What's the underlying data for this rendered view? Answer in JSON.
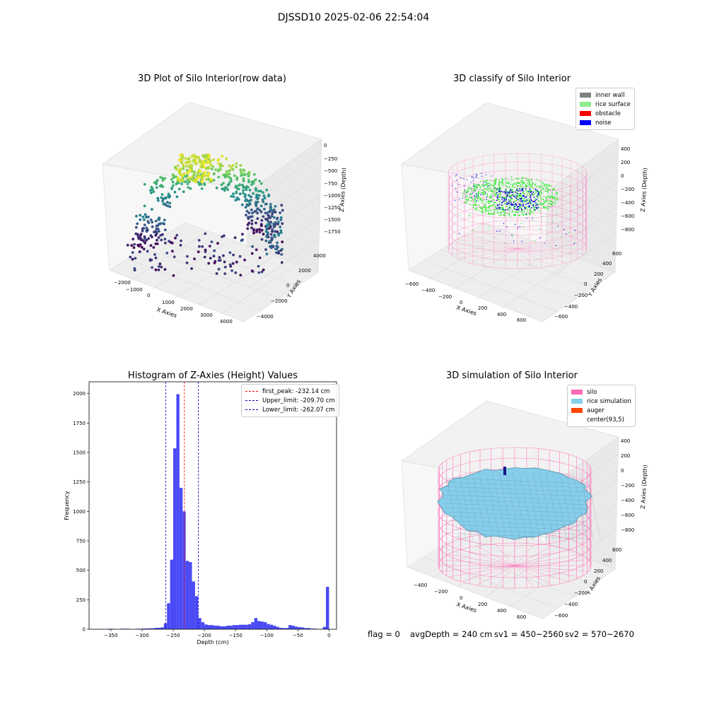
{
  "figure": {
    "suptitle": "DJSSD10 2025-02-06 22:54:04",
    "status": {
      "flag": "flag = 0",
      "avg_depth": "avgDepth = 240 cm",
      "sv1": "sv1 = 450~2560",
      "sv2": "sv2 = 570~2670"
    }
  },
  "colors": {
    "inner_wall": "#808080",
    "rice_surface": "#90ee90",
    "obstacle": "#ff0000",
    "noise": "#0000ff",
    "silo": "#ff69b4",
    "rice_simulation": "#87ceeb",
    "auger": "#ff4500",
    "hist_bar": "#4a4af5",
    "first_peak_line": "#ff0000",
    "limit_lines": "#0000cc"
  },
  "chart_data": [
    {
      "type": "scatter",
      "title": "3D Plot of Silo Interior(row data)",
      "xlabel": "X Axies",
      "ylabel": "Y Axies",
      "zlabel": "Z Axies (Depth)",
      "x_ticks": [
        "−2000",
        "−1000",
        "0",
        "1000",
        "2000",
        "3000",
        "4000"
      ],
      "y_ticks": [
        "−4000",
        "−2000",
        "0",
        "2000",
        "4000"
      ],
      "z_ticks": [
        "0",
        "−250",
        "−500",
        "−750",
        "−1000",
        "−1250",
        "−1500",
        "−1750"
      ],
      "colormap": "viridis",
      "grid": true
    },
    {
      "type": "scatter",
      "title": "3D classify of Silo Interior",
      "xlabel": "X Axies",
      "ylabel": "Y Axies",
      "zlabel": "Z Axies (Depth)",
      "x_ticks": [
        "−600",
        "−400",
        "−200",
        "0",
        "200",
        "400",
        "600"
      ],
      "y_ticks": [
        "−600",
        "−400",
        "−200",
        "0",
        "200",
        "400",
        "600"
      ],
      "z_ticks": [
        "400",
        "200",
        "0",
        "−200",
        "−400",
        "−600",
        "−800"
      ],
      "legend": [
        "inner wall",
        "rice surface",
        "obstacle",
        "noise"
      ],
      "legend_position": "top-right",
      "grid": true
    },
    {
      "type": "bar",
      "title": "Histogram of Z-Axies (Height) Values",
      "xlabel": "Depth (cm)",
      "ylabel": "Frequency",
      "xlim": [
        -385,
        12
      ],
      "ylim": [
        0,
        2100
      ],
      "x_ticks": [
        -350,
        -300,
        -250,
        -200,
        -150,
        -100,
        -50,
        0
      ],
      "x_tick_labels": [
        "−350",
        "−300",
        "−250",
        "−200",
        "−150",
        "−100",
        "−50",
        "0"
      ],
      "y_ticks": [
        0,
        250,
        500,
        750,
        1000,
        1250,
        1500,
        1750,
        2000
      ],
      "y_tick_labels": [
        "0",
        "250",
        "500",
        "750",
        "1000",
        "1250",
        "1500",
        "1750",
        "2000"
      ],
      "bins": [
        {
          "x0": -375,
          "x1": -370,
          "v": 3
        },
        {
          "x0": -355,
          "x1": -345,
          "v": 4
        },
        {
          "x0": -335,
          "x1": -320,
          "v": 4
        },
        {
          "x0": -310,
          "x1": -300,
          "v": 4
        },
        {
          "x0": -300,
          "x1": -290,
          "v": 6
        },
        {
          "x0": -290,
          "x1": -280,
          "v": 8
        },
        {
          "x0": -280,
          "x1": -270,
          "v": 12
        },
        {
          "x0": -270,
          "x1": -265,
          "v": 16
        },
        {
          "x0": -265,
          "x1": -260,
          "v": 50
        },
        {
          "x0": -260,
          "x1": -255,
          "v": 220
        },
        {
          "x0": -255,
          "x1": -250,
          "v": 590
        },
        {
          "x0": -250,
          "x1": -245,
          "v": 1535
        },
        {
          "x0": -245,
          "x1": -240,
          "v": 1995
        },
        {
          "x0": -240,
          "x1": -235,
          "v": 1200
        },
        {
          "x0": -235,
          "x1": -230,
          "v": 1000
        },
        {
          "x0": -230,
          "x1": -225,
          "v": 580
        },
        {
          "x0": -225,
          "x1": -220,
          "v": 570
        },
        {
          "x0": -220,
          "x1": -215,
          "v": 405
        },
        {
          "x0": -215,
          "x1": -210,
          "v": 280
        },
        {
          "x0": -210,
          "x1": -205,
          "v": 95
        },
        {
          "x0": -205,
          "x1": -200,
          "v": 60
        },
        {
          "x0": -200,
          "x1": -195,
          "v": 40
        },
        {
          "x0": -195,
          "x1": -185,
          "v": 35
        },
        {
          "x0": -185,
          "x1": -175,
          "v": 30
        },
        {
          "x0": -175,
          "x1": -165,
          "v": 25
        },
        {
          "x0": -165,
          "x1": -155,
          "v": 30
        },
        {
          "x0": -155,
          "x1": -145,
          "v": 35
        },
        {
          "x0": -145,
          "x1": -130,
          "v": 38
        },
        {
          "x0": -130,
          "x1": -125,
          "v": 42
        },
        {
          "x0": -125,
          "x1": -120,
          "v": 60
        },
        {
          "x0": -120,
          "x1": -115,
          "v": 95
        },
        {
          "x0": -115,
          "x1": -110,
          "v": 70
        },
        {
          "x0": -110,
          "x1": -105,
          "v": 65
        },
        {
          "x0": -105,
          "x1": -100,
          "v": 60
        },
        {
          "x0": -100,
          "x1": -95,
          "v": 45
        },
        {
          "x0": -95,
          "x1": -90,
          "v": 38
        },
        {
          "x0": -90,
          "x1": -85,
          "v": 30
        },
        {
          "x0": -85,
          "x1": -80,
          "v": 20
        },
        {
          "x0": -80,
          "x1": -75,
          "v": 12
        },
        {
          "x0": -75,
          "x1": -65,
          "v": 10
        },
        {
          "x0": -65,
          "x1": -60,
          "v": 35
        },
        {
          "x0": -60,
          "x1": -55,
          "v": 30
        },
        {
          "x0": -55,
          "x1": -50,
          "v": 22
        },
        {
          "x0": -50,
          "x1": -45,
          "v": 18
        },
        {
          "x0": -45,
          "x1": -40,
          "v": 15
        },
        {
          "x0": -40,
          "x1": -30,
          "v": 10
        },
        {
          "x0": -30,
          "x1": -20,
          "v": 5
        },
        {
          "x0": -10,
          "x1": -5,
          "v": 20
        },
        {
          "x0": -5,
          "x1": 0,
          "v": 360
        }
      ],
      "vlines": [
        {
          "label": "first_peak: -232.14 cm",
          "x": -232.14,
          "color": "#ff0000"
        },
        {
          "label": "Upper_limit: -209.70 cm",
          "x": -209.7,
          "color": "#0000cc"
        },
        {
          "label": "Lower_limit: -262.07 cm",
          "x": -262.07,
          "color": "#0000cc"
        }
      ],
      "legend_position": "top-right"
    },
    {
      "type": "area",
      "title": "3D simulation of Silo Interior",
      "xlabel": "X Axies",
      "ylabel": "Y Axies",
      "zlabel": "Z Axies (Depth)",
      "x_ticks": [
        "−400",
        "−200",
        "0",
        "200",
        "400",
        "600"
      ],
      "y_ticks": [
        "−600",
        "−400",
        "−200",
        "0",
        "200",
        "400",
        "600"
      ],
      "z_ticks": [
        "400",
        "200",
        "0",
        "−200",
        "−400",
        "−600",
        "−800"
      ],
      "legend": [
        "silo",
        "rice simulation",
        "auger",
        "center(93,5)"
      ],
      "legend_position": "top-right",
      "grid": true
    }
  ]
}
